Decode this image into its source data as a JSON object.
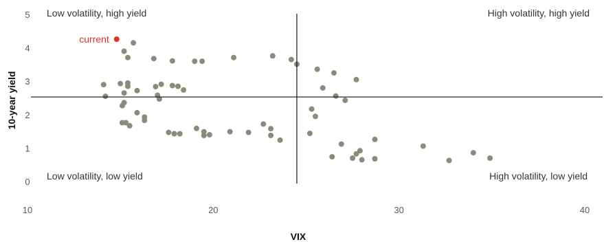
{
  "chart_data": {
    "type": "scatter",
    "xlabel": "VIX",
    "ylabel": "10-year yield",
    "xlim": [
      10,
      41
    ],
    "ylim": [
      0,
      5
    ],
    "x_ticks": [
      "10",
      "20",
      "30",
      "40"
    ],
    "y_ticks": [
      "0",
      "1",
      "2",
      "3",
      "4",
      "5"
    ],
    "divider": {
      "x": 24.5,
      "y": 2.55
    },
    "quadrant_labels": {
      "top_left": "Low volatility, high yield",
      "top_right": "High volatility, high yield",
      "bottom_left": "Low volatility, low yield",
      "bottom_right": "High volatility, low yield"
    },
    "colors": {
      "points": "#8b8b7b",
      "current": "#e0302a",
      "axes": "#111111"
    },
    "current": {
      "label": "current",
      "x": 14.8,
      "y": 4.28
    },
    "points": [
      [
        15.7,
        4.17
      ],
      [
        15.2,
        3.92
      ],
      [
        15.4,
        3.73
      ],
      [
        16.8,
        3.7
      ],
      [
        17.8,
        3.63
      ],
      [
        19.0,
        3.62
      ],
      [
        19.4,
        3.62
      ],
      [
        21.1,
        3.73
      ],
      [
        23.2,
        3.78
      ],
      [
        24.2,
        3.67
      ],
      [
        24.5,
        3.53
      ],
      [
        25.6,
        3.38
      ],
      [
        26.5,
        3.27
      ],
      [
        27.7,
        3.07
      ],
      [
        25.9,
        2.82
      ],
      [
        26.6,
        2.58
      ],
      [
        27.1,
        2.45
      ],
      [
        14.1,
        2.92
      ],
      [
        15.0,
        2.95
      ],
      [
        15.4,
        2.97
      ],
      [
        15.4,
        2.87
      ],
      [
        16.9,
        2.86
      ],
      [
        17.2,
        2.93
      ],
      [
        17.8,
        2.89
      ],
      [
        18.1,
        2.87
      ],
      [
        18.4,
        2.76
      ],
      [
        15.9,
        2.74
      ],
      [
        15.2,
        2.67
      ],
      [
        17.0,
        2.6
      ],
      [
        14.2,
        2.57
      ],
      [
        17.1,
        2.49
      ],
      [
        15.2,
        2.38
      ],
      [
        15.1,
        2.29
      ],
      [
        15.9,
        2.08
      ],
      [
        16.3,
        1.95
      ],
      [
        16.3,
        1.85
      ],
      [
        25.3,
        2.19
      ],
      [
        25.5,
        1.97
      ],
      [
        15.1,
        1.78
      ],
      [
        15.3,
        1.78
      ],
      [
        15.5,
        1.69
      ],
      [
        17.6,
        1.49
      ],
      [
        17.9,
        1.45
      ],
      [
        18.2,
        1.45
      ],
      [
        19.1,
        1.61
      ],
      [
        19.5,
        1.51
      ],
      [
        19.5,
        1.4
      ],
      [
        19.8,
        1.42
      ],
      [
        20.9,
        1.51
      ],
      [
        21.9,
        1.49
      ],
      [
        22.7,
        1.74
      ],
      [
        23.1,
        1.6
      ],
      [
        23.1,
        1.4
      ],
      [
        23.6,
        1.26
      ],
      [
        25.2,
        1.46
      ],
      [
        26.9,
        1.14
      ],
      [
        28.7,
        1.28
      ],
      [
        31.3,
        1.08
      ],
      [
        26.4,
        0.76
      ],
      [
        27.5,
        0.72
      ],
      [
        27.7,
        0.85
      ],
      [
        27.9,
        0.94
      ],
      [
        28.0,
        0.67
      ],
      [
        28.7,
        0.7
      ],
      [
        32.7,
        0.65
      ],
      [
        34.0,
        0.88
      ],
      [
        34.9,
        0.72
      ]
    ]
  }
}
